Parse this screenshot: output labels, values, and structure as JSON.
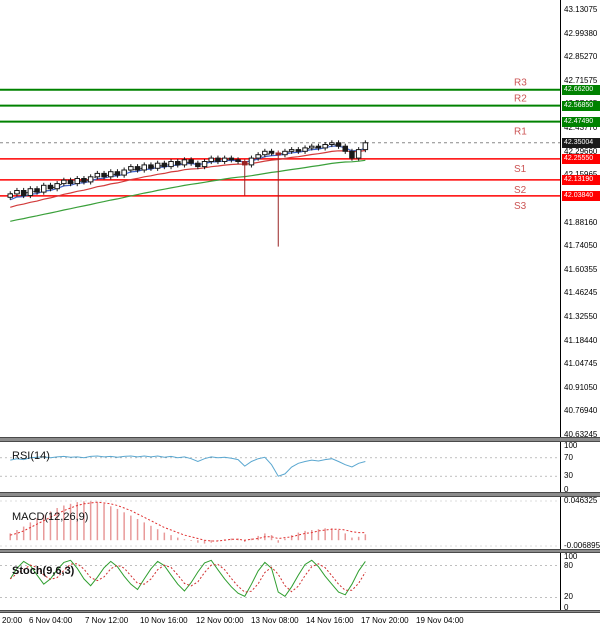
{
  "chart_data": {
    "type": "candlestick",
    "title": "",
    "price_range": [
      40.63245,
      43.13075
    ],
    "current_price": "42.35004",
    "y_axis_ticks": [
      "43.13075",
      "42.99380",
      "42.85270",
      "42.71575",
      "42.57465",
      "42.43770",
      "42.29660",
      "42.15965",
      "42.01855",
      "41.88160",
      "41.74050",
      "41.60355",
      "41.46245",
      "41.32550",
      "41.18440",
      "41.04745",
      "40.91050",
      "40.76940",
      "40.63245"
    ],
    "levels": [
      {
        "name": "R3",
        "value": 42.662,
        "label": "42.66200",
        "kind": "resistance"
      },
      {
        "name": "R2",
        "value": 42.5685,
        "label": "42.56850",
        "kind": "resistance"
      },
      {
        "name": "R1",
        "value": 42.4749,
        "label": "42.47490",
        "kind": "resistance"
      },
      {
        "name": "S1",
        "value": 42.2555,
        "label": "42.25550",
        "kind": "support"
      },
      {
        "name": "S2",
        "value": 42.1319,
        "label": "42.13190",
        "kind": "support"
      },
      {
        "name": "S3",
        "value": 42.0384,
        "label": "42.03840",
        "kind": "support"
      }
    ],
    "colors": {
      "resistance": "#008200",
      "support": "#ff0000",
      "current_bg": "#1a1a1a",
      "rs_text": "#cc5555",
      "candle": "#1a1a1a",
      "candle_spike": "#992222"
    },
    "candles": {
      "open_first": 42.03,
      "wick": 0.015,
      "special_lows": {
        "35": 42.04,
        "40": 41.74
      },
      "closes": [
        42.05,
        42.07,
        42.04,
        42.08,
        42.06,
        42.1,
        42.08,
        42.11,
        42.13,
        42.11,
        42.14,
        42.12,
        42.15,
        42.17,
        42.15,
        42.18,
        42.16,
        42.19,
        42.21,
        42.19,
        42.22,
        42.2,
        42.23,
        42.21,
        42.24,
        42.22,
        42.25,
        42.23,
        42.21,
        42.24,
        42.26,
        42.24,
        42.26,
        42.25,
        42.24,
        42.22,
        42.26,
        42.28,
        42.3,
        42.29,
        42.28,
        42.3,
        42.31,
        42.3,
        42.32,
        42.33,
        42.32,
        42.34,
        42.35,
        42.33,
        42.3,
        42.26,
        42.31,
        42.35
      ]
    },
    "moving_averages": [
      {
        "name": "ma-fast-dotted-line",
        "color": "#333333",
        "seed": 42.05,
        "k": 0.5,
        "dash": "2,2"
      },
      {
        "name": "ma-blue-line",
        "color": "#3f62c8",
        "seed": 42.0,
        "k": 0.3,
        "dash": ""
      },
      {
        "name": "ma-red-line",
        "color": "#d23b3b",
        "seed": 41.96,
        "k": 0.12,
        "dash": ""
      },
      {
        "name": "ma-green-line",
        "color": "#3aa03a",
        "seed": 41.88,
        "k": 0.05,
        "dash": ""
      }
    ],
    "indicators": {
      "rsi": {
        "label": "RSI(14)",
        "axis": [
          100,
          70,
          30,
          0
        ],
        "grid": [
          70,
          30
        ],
        "color": "#5aa7d0",
        "range": [
          0,
          100
        ],
        "values": [
          65,
          68,
          66,
          70,
          71,
          72,
          70,
          72,
          73,
          71,
          72,
          70,
          73,
          74,
          72,
          73,
          71,
          73,
          74,
          72,
          74,
          72,
          74,
          71,
          73,
          70,
          72,
          68,
          62,
          68,
          72,
          70,
          71,
          69,
          66,
          52,
          62,
          68,
          71,
          55,
          30,
          35,
          50,
          58,
          62,
          65,
          63,
          66,
          68,
          62,
          55,
          50,
          58,
          62
        ]
      },
      "macd": {
        "label": "MACD(12,26,9)",
        "axis_top": "0.046325",
        "axis_bottom": "-0.006895",
        "max": 0.046325,
        "min": -0.006895,
        "hist_color": "#e89a9a",
        "signal_color": "#e03030",
        "hist": [
          0.008,
          0.012,
          0.016,
          0.021,
          0.026,
          0.03,
          0.034,
          0.038,
          0.041,
          0.043,
          0.045,
          0.046,
          0.046,
          0.045,
          0.043,
          0.04,
          0.037,
          0.033,
          0.029,
          0.025,
          0.021,
          0.017,
          0.013,
          0.009,
          0.006,
          0.003,
          0.001,
          -0.001,
          -0.003,
          -0.004,
          -0.003,
          -0.001,
          0.001,
          0.002,
          0.002,
          -0.002,
          0.002,
          0.005,
          0.008,
          0.006,
          -0.003,
          0.002,
          0.006,
          0.009,
          0.011,
          0.012,
          0.013,
          0.014,
          0.014,
          0.012,
          0.008,
          0.003,
          0.004,
          0.007
        ],
        "signal": [
          0.006,
          0.008,
          0.011,
          0.015,
          0.019,
          0.023,
          0.027,
          0.031,
          0.035,
          0.038,
          0.041,
          0.043,
          0.044,
          0.045,
          0.044,
          0.043,
          0.041,
          0.038,
          0.035,
          0.031,
          0.027,
          0.023,
          0.019,
          0.015,
          0.012,
          0.009,
          0.006,
          0.004,
          0.002,
          0,
          -0.001,
          -0.001,
          0,
          0.001,
          0.001,
          0,
          0.001,
          0.002,
          0.004,
          0.004,
          0.002,
          0.003,
          0.004,
          0.006,
          0.008,
          0.009,
          0.011,
          0.012,
          0.013,
          0.013,
          0.012,
          0.01,
          0.009,
          0.009
        ]
      },
      "stoch": {
        "label": "Stoch(9,6,3)",
        "axis": [
          100,
          80,
          20,
          0
        ],
        "grid": [
          80,
          20
        ],
        "k_color": "#2f9e2f",
        "d_color": "#d03030",
        "range": [
          0,
          100
        ],
        "k": [
          55,
          75,
          88,
          80,
          62,
          45,
          55,
          72,
          86,
          90,
          75,
          55,
          42,
          58,
          76,
          88,
          78,
          60,
          45,
          35,
          55,
          74,
          88,
          80,
          62,
          45,
          32,
          48,
          68,
          85,
          90,
          72,
          55,
          40,
          28,
          22,
          45,
          70,
          86,
          75,
          30,
          22,
          40,
          62,
          82,
          90,
          78,
          60,
          45,
          30,
          25,
          45,
          70,
          88
        ]
      }
    },
    "x_labels": [
      "20:00",
      "6 Nov 04:00",
      "7 Nov 12:00",
      "10 Nov 16:00",
      "12 Nov 00:00",
      "13 Nov 08:00",
      "14 Nov 16:00",
      "17 Nov 20:00",
      "19 Nov 04:00"
    ]
  }
}
